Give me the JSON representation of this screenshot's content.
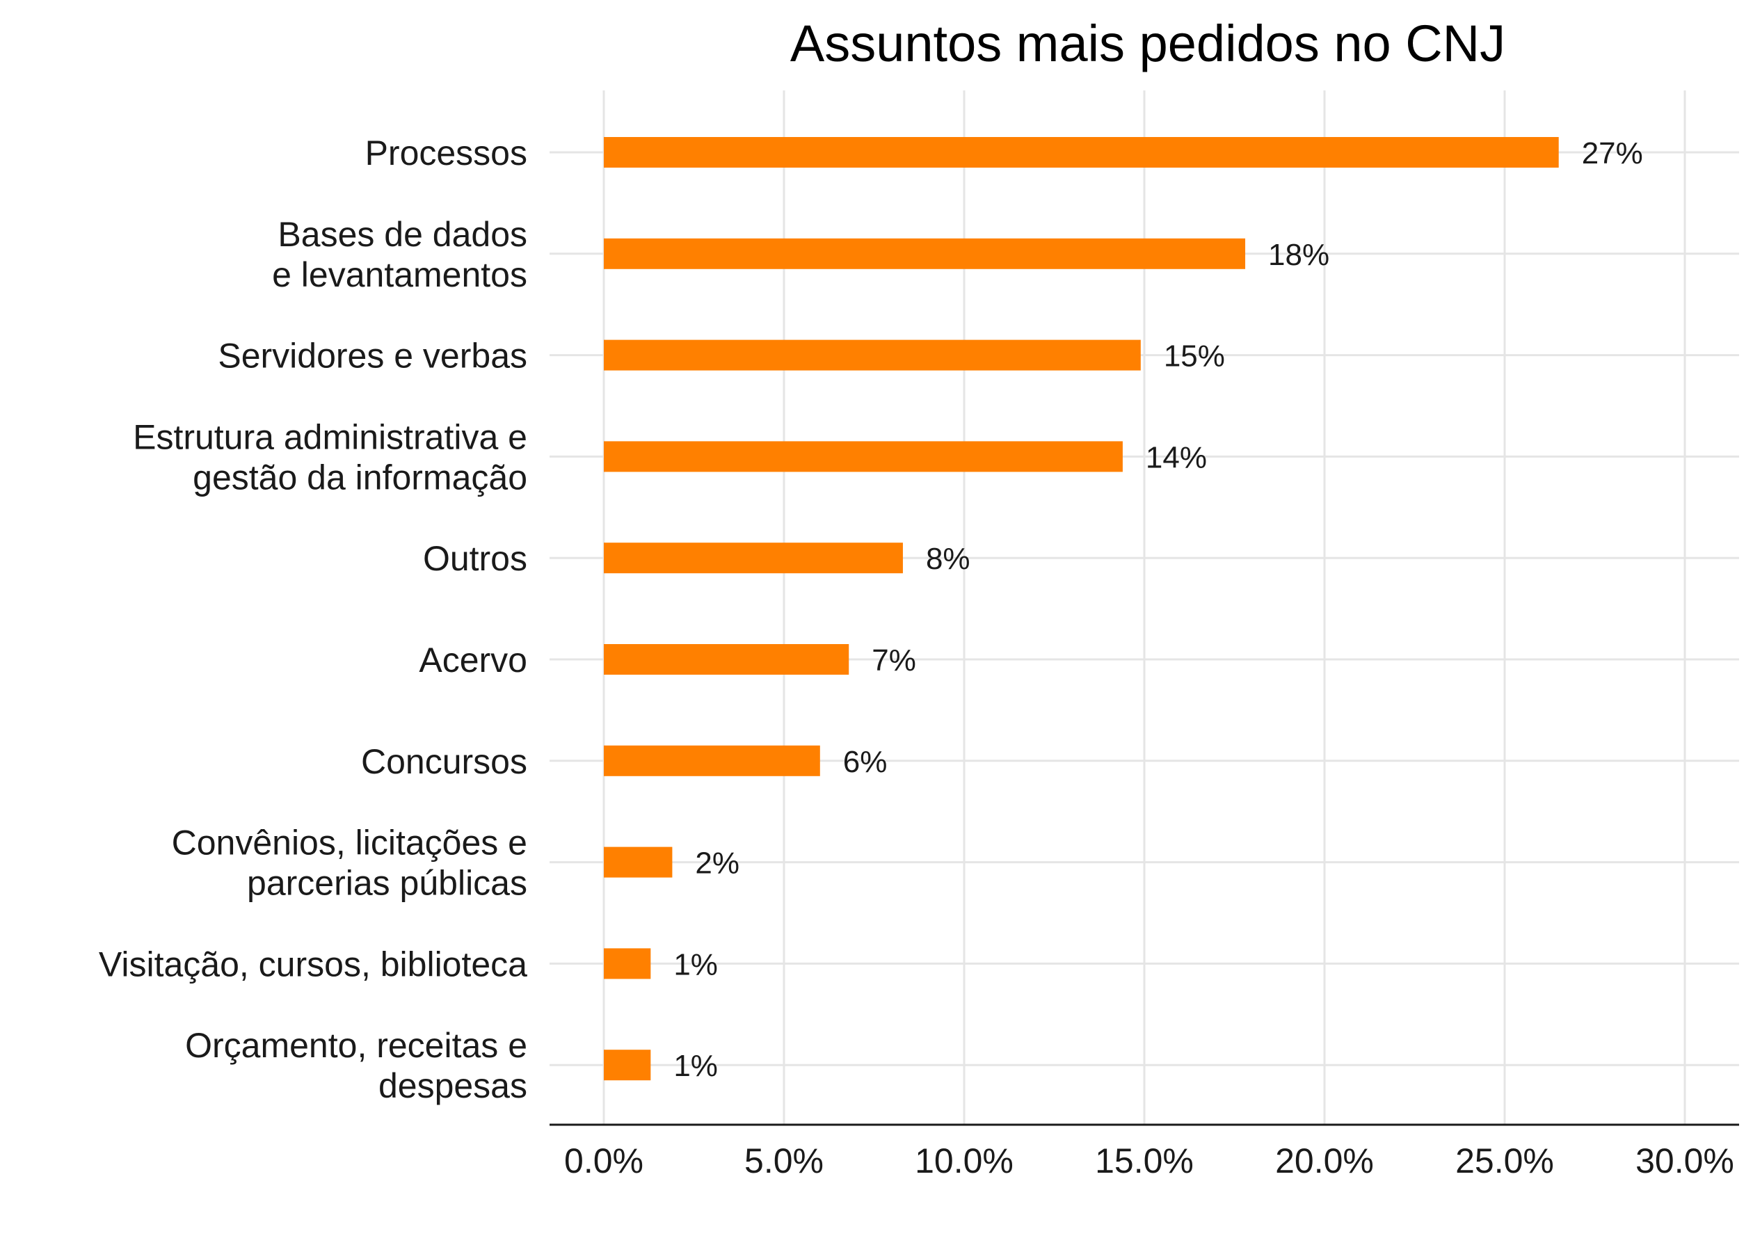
{
  "chart_data": {
    "type": "bar",
    "orientation": "horizontal",
    "title": "Assuntos mais pedidos no CNJ",
    "xlabel": "",
    "ylabel": "",
    "xlim": [
      0,
      30
    ],
    "ticks": [
      0,
      5,
      10,
      15,
      20,
      25,
      30
    ],
    "tick_labels": [
      "0.0%",
      "5.0%",
      "10.0%",
      "15.0%",
      "20.0%",
      "25.0%",
      "30.0%"
    ],
    "grid": true,
    "bar_color": "#FF8000",
    "categories": [
      [
        "Processos"
      ],
      [
        "Bases de dados",
        "e levantamentos"
      ],
      [
        "Servidores e verbas"
      ],
      [
        "Estrutura administrativa e",
        "gestão da informação"
      ],
      [
        "Outros"
      ],
      [
        "Acervo"
      ],
      [
        "Concursos"
      ],
      [
        "Convênios, licitações e",
        "parcerias públicas"
      ],
      [
        "Visitação, cursos, biblioteca"
      ],
      [
        "Orçamento, receitas e",
        "despesas"
      ]
    ],
    "values": [
      26.5,
      17.8,
      14.9,
      14.4,
      8.3,
      6.8,
      6.0,
      1.9,
      1.3,
      1.3
    ],
    "data_labels": [
      "27%",
      "18%",
      "15%",
      "14%",
      "8%",
      "7%",
      "6%",
      "2%",
      "1%",
      "1%"
    ]
  }
}
